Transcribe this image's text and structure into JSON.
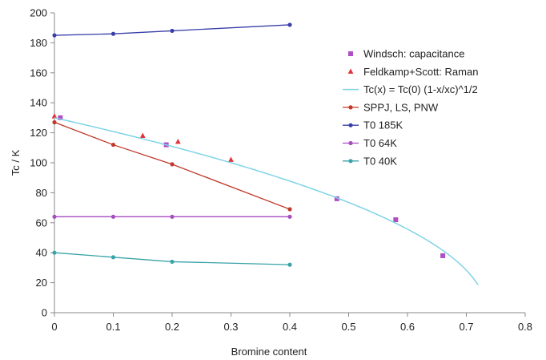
{
  "chart_data": {
    "type": "line",
    "xlabel": "Bromine content",
    "ylabel": "Tc / K",
    "xlim": [
      0,
      0.8
    ],
    "ylim": [
      0,
      200
    ],
    "xticks": [
      0,
      0.1,
      0.2,
      0.3,
      0.4,
      0.5,
      0.6,
      0.7,
      0.8
    ],
    "xtick_labels": [
      "0",
      "0.1",
      "0.2",
      "0.3",
      "0.4",
      "0.5",
      "0.6",
      "0.7",
      "0.8"
    ],
    "yticks": [
      0,
      20,
      40,
      60,
      80,
      100,
      120,
      140,
      160,
      180,
      200
    ],
    "ytick_labels": [
      "0",
      "20",
      "40",
      "60",
      "80",
      "100",
      "120",
      "140",
      "160",
      "180",
      "200"
    ],
    "grid": false,
    "legend_position": "right",
    "series": [
      {
        "name": "Windsch: capacitance",
        "style": "markers",
        "marker": "square",
        "color": "#b04fc4",
        "points": [
          [
            0.01,
            130
          ],
          [
            0.19,
            112
          ],
          [
            0.48,
            76
          ],
          [
            0.58,
            62
          ],
          [
            0.66,
            38
          ]
        ]
      },
      {
        "name": "Feldkamp+Scott: Raman",
        "style": "markers",
        "marker": "triangle",
        "color": "#e0343a",
        "points": [
          [
            0,
            131
          ],
          [
            0.15,
            118
          ],
          [
            0.21,
            114
          ],
          [
            0.3,
            102
          ]
        ]
      },
      {
        "name": "Tc(x) = Tc(0) (1-x/xc)^1/2",
        "style": "curve",
        "color": "#7fd4e6",
        "tc0": 130,
        "xc": 0.735,
        "x_range": [
          0,
          0.72
        ]
      },
      {
        "name": "SPPJ, LS, PNW",
        "style": "line-markers",
        "marker": "circle",
        "color": "#c0392b",
        "points": [
          [
            0,
            127
          ],
          [
            0.1,
            112
          ],
          [
            0.2,
            99
          ],
          [
            0.4,
            69
          ]
        ]
      },
      {
        "name": "T0 185K",
        "style": "line-markers",
        "marker": "circle",
        "color": "#3a3fa8",
        "points": [
          [
            0,
            185
          ],
          [
            0.1,
            186
          ],
          [
            0.2,
            188
          ],
          [
            0.4,
            192
          ]
        ]
      },
      {
        "name": "T0 64K",
        "style": "line-markers",
        "marker": "circle",
        "color": "#a64ec0",
        "points": [
          [
            0,
            64
          ],
          [
            0.1,
            64
          ],
          [
            0.2,
            64
          ],
          [
            0.4,
            64
          ]
        ]
      },
      {
        "name": "T0 40K",
        "style": "line-markers",
        "marker": "circle",
        "color": "#3aa3a8",
        "points": [
          [
            0,
            40
          ],
          [
            0.1,
            37
          ],
          [
            0.2,
            34
          ],
          [
            0.4,
            32
          ]
        ]
      }
    ]
  }
}
